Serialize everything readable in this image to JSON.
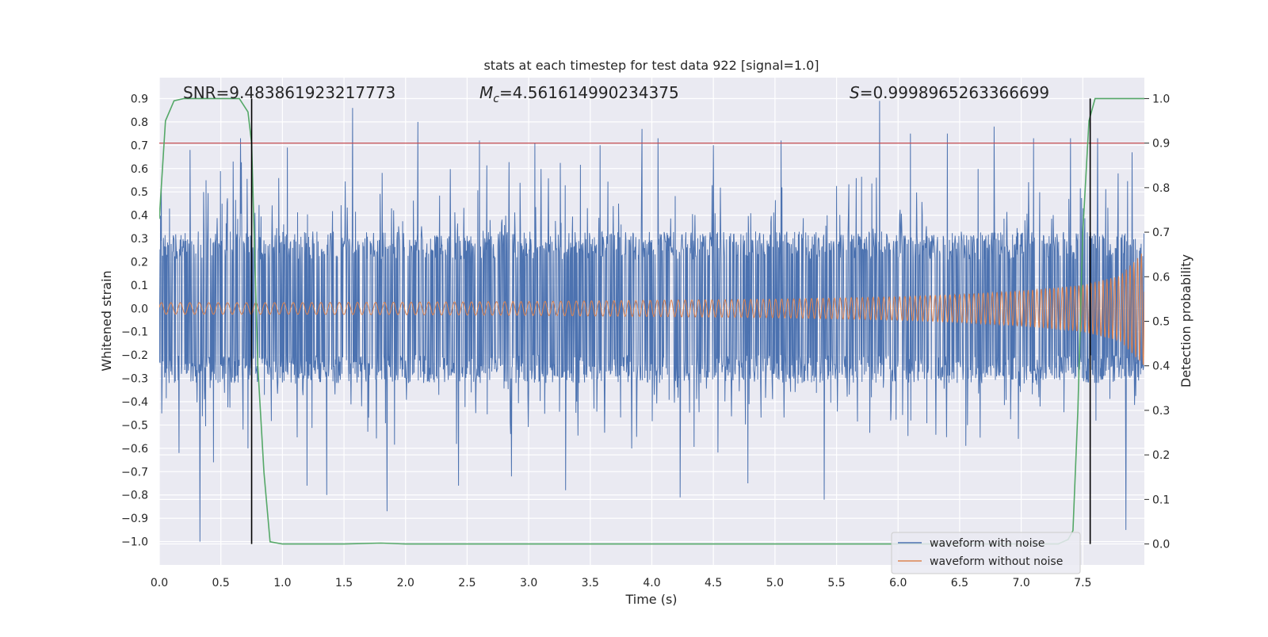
{
  "chart_data": {
    "type": "line",
    "title": "stats at each timestep for test data 922 [signal=1.0]",
    "xlabel": "Time (s)",
    "ylabel": "Whitened strain",
    "ylabel_right": "Detection probability",
    "xlim": [
      0.0,
      8.0
    ],
    "ylim": [
      -1.1,
      0.99
    ],
    "ylim_right": [
      -0.047,
      1.047
    ],
    "xticks": [
      0.0,
      0.5,
      1.0,
      1.5,
      2.0,
      2.5,
      3.0,
      3.5,
      4.0,
      4.5,
      5.0,
      5.5,
      6.0,
      6.5,
      7.0,
      7.5
    ],
    "xtick_labels": [
      "0.0",
      "0.5",
      "1.0",
      "1.5",
      "2.0",
      "2.5",
      "3.0",
      "3.5",
      "4.0",
      "4.5",
      "5.0",
      "5.5",
      "6.0",
      "6.5",
      "7.0",
      "7.5"
    ],
    "yticks": [
      0.9,
      0.8,
      0.7,
      0.6,
      0.5,
      0.4,
      0.3,
      0.2,
      0.1,
      0.0,
      -0.1,
      -0.2,
      -0.3,
      -0.4,
      -0.5,
      -0.6,
      -0.7,
      -0.8,
      -0.9,
      -1.0
    ],
    "ytick_labels": [
      "0.9",
      "0.8",
      "0.7",
      "0.6",
      "0.5",
      "0.4",
      "0.3",
      "0.2",
      "0.1",
      "0.0",
      "−0.1",
      "−0.2",
      "−0.3",
      "−0.4",
      "−0.5",
      "−0.6",
      "−0.7",
      "−0.8",
      "−0.9",
      "−1.0"
    ],
    "yticks_right": [
      1.0,
      0.9,
      0.8,
      0.7,
      0.6,
      0.5,
      0.4,
      0.3,
      0.2,
      0.1,
      0.0
    ],
    "ytick_right_labels": [
      "1.0",
      "0.9",
      "0.8",
      "0.7",
      "0.6",
      "0.5",
      "0.4",
      "0.3",
      "0.2",
      "0.1",
      "0.0"
    ],
    "grid": true,
    "legend_position": "lower-right",
    "colors": {
      "noisy": "#4c72b0",
      "clean": "#dd8452",
      "probability": "#55a868",
      "threshold": "#c44e52",
      "marker": "#000000",
      "plot_background": "#eaeaf2",
      "grid": "#ffffff"
    },
    "annotations": {
      "snr": "SNR=9.483861923217773",
      "mc_symbol": "M",
      "mc_sub": "c",
      "mc_value": "=4.561614990234375",
      "s_symbol": "S",
      "s_value": "=0.9998965263366699"
    },
    "threshold_probability": 0.9,
    "marker_lines_x": [
      0.75,
      7.56
    ],
    "series": [
      {
        "name": "waveform with noise",
        "kind": "noise_envelope",
        "typical_range": [
          -0.32,
          0.33
        ],
        "x": [
          0.02,
          0.16,
          0.25,
          0.33,
          0.38,
          0.44,
          0.6,
          0.66,
          0.72,
          1.04,
          1.2,
          1.36,
          1.57,
          1.85,
          2.1,
          2.43,
          2.6,
          2.86,
          3.05,
          3.3,
          3.58,
          3.92,
          4.05,
          4.23,
          4.5,
          4.78,
          5.05,
          5.4,
          5.85,
          6.1,
          6.4,
          6.78,
          7.1,
          7.4,
          7.62,
          7.85,
          7.9
        ],
        "y": [
          -0.45,
          -0.62,
          0.68,
          -1.0,
          0.55,
          -0.66,
          0.63,
          0.73,
          -0.6,
          0.69,
          -0.76,
          -0.8,
          0.86,
          -0.87,
          0.8,
          -0.76,
          0.72,
          -0.72,
          0.71,
          -0.78,
          0.7,
          0.77,
          0.73,
          -0.81,
          0.7,
          -0.75,
          0.72,
          -0.82,
          0.89,
          0.75,
          0.75,
          0.78,
          0.73,
          0.73,
          0.73,
          -0.95,
          0.67
        ]
      },
      {
        "name": "waveform without noise",
        "kind": "chirp",
        "amplitude_vs_time": {
          "t": [
            0.0,
            1.0,
            2.0,
            3.0,
            4.0,
            5.0,
            6.0,
            6.5,
            7.0,
            7.5,
            7.8,
            7.95,
            8.0
          ],
          "amp": [
            0.025,
            0.025,
            0.027,
            0.03,
            0.035,
            0.04,
            0.05,
            0.06,
            0.075,
            0.1,
            0.14,
            0.22,
            0.25
          ]
        }
      },
      {
        "name": "Detection probability",
        "axis": "right",
        "x": [
          0.0,
          0.05,
          0.12,
          0.2,
          0.3,
          0.5,
          0.65,
          0.72,
          0.75,
          0.8,
          0.85,
          0.9,
          1.0,
          1.5,
          1.8,
          2.0,
          3.0,
          4.0,
          5.0,
          6.0,
          7.0,
          7.3,
          7.38,
          7.42,
          7.46,
          7.5,
          7.55,
          7.6,
          7.7,
          8.0
        ],
        "y": [
          0.73,
          0.95,
          0.995,
          1.0,
          1.0,
          1.0,
          1.0,
          0.97,
          0.9,
          0.4,
          0.16,
          0.005,
          0.0,
          0.0,
          0.002,
          0.0,
          0.0,
          0.0,
          0.0,
          0.0,
          0.0,
          0.0,
          0.01,
          0.03,
          0.3,
          0.7,
          0.95,
          1.0,
          1.0,
          1.0
        ]
      }
    ]
  }
}
